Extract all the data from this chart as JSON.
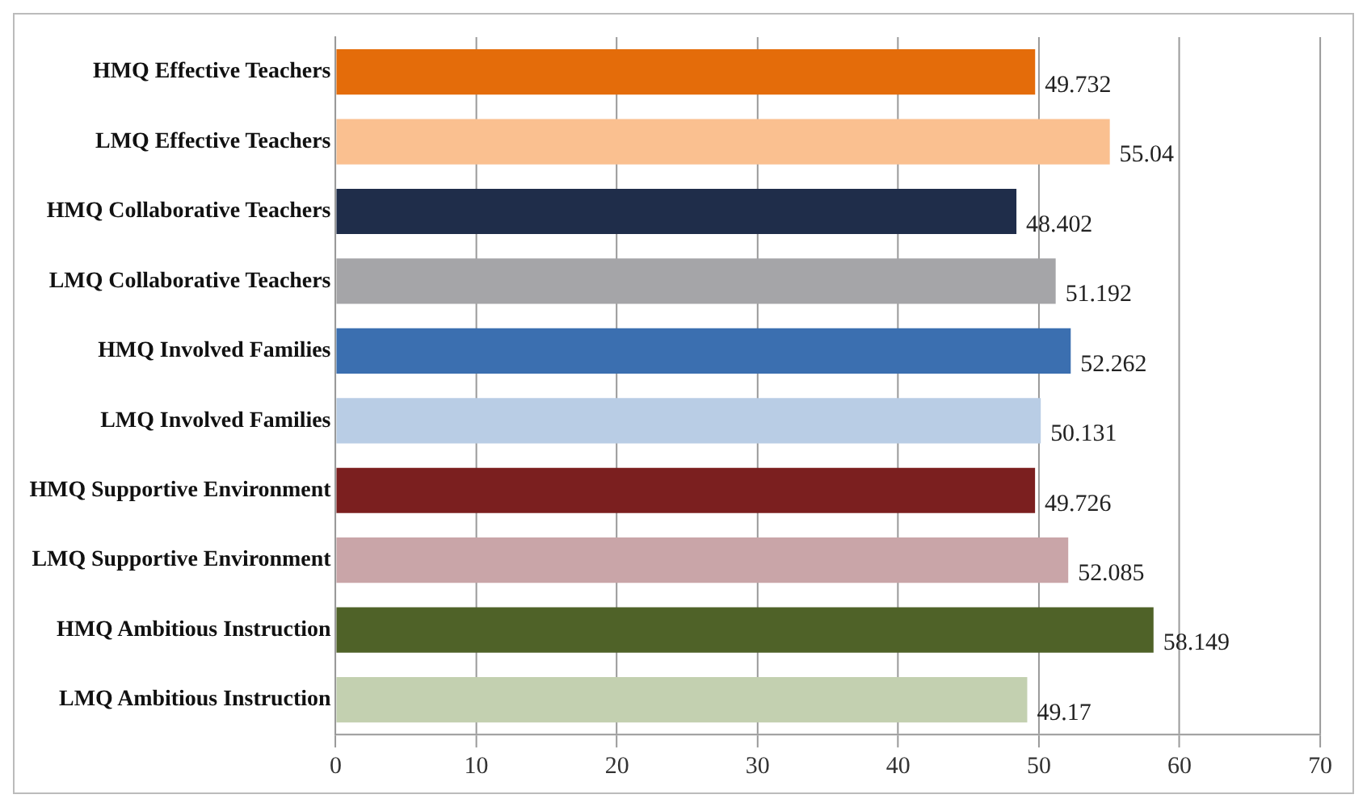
{
  "chart_data": {
    "type": "bar",
    "orientation": "horizontal",
    "categories": [
      "HMQ Effective Teachers",
      "LMQ Effective Teachers",
      "HMQ Collaborative Teachers",
      "LMQ Collaborative Teachers",
      "HMQ Involved Families",
      "LMQ Involved Families",
      "HMQ Supportive Environment",
      "LMQ Supportive Environment",
      "HMQ Ambitious Instruction",
      "LMQ Ambitious Instruction"
    ],
    "values": [
      49.732,
      55.04,
      48.402,
      51.192,
      52.262,
      50.131,
      49.726,
      52.085,
      58.149,
      49.17
    ],
    "colors": [
      "#e46c0a",
      "#fac090",
      "#1f2d4a",
      "#a5a5a8",
      "#3b6fb0",
      "#b9cde5",
      "#7b1f1f",
      "#c9a5a8",
      "#4f6228",
      "#c3d0b0"
    ],
    "xlim": [
      0,
      70
    ],
    "xticks": [
      0,
      10,
      20,
      30,
      40,
      50,
      60,
      70
    ],
    "grid": "x",
    "data_labels": true,
    "legend": false
  }
}
